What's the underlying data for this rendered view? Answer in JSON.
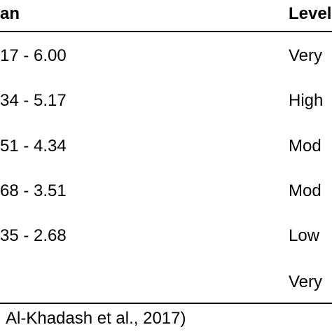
{
  "table": {
    "header": [
      "an",
      "Level"
    ],
    "rows": [
      [
        "17 - 6.00",
        "Very"
      ],
      [
        "34 - 5.17",
        "High"
      ],
      [
        "51 - 4.34",
        "Mod"
      ],
      [
        "68 - 3.51",
        "Mod"
      ],
      [
        "35 - 2.68",
        "Low"
      ],
      [
        null,
        "Very"
      ]
    ]
  },
  "footer": {
    "source": "Al-Khadash et al., 2017)"
  }
}
